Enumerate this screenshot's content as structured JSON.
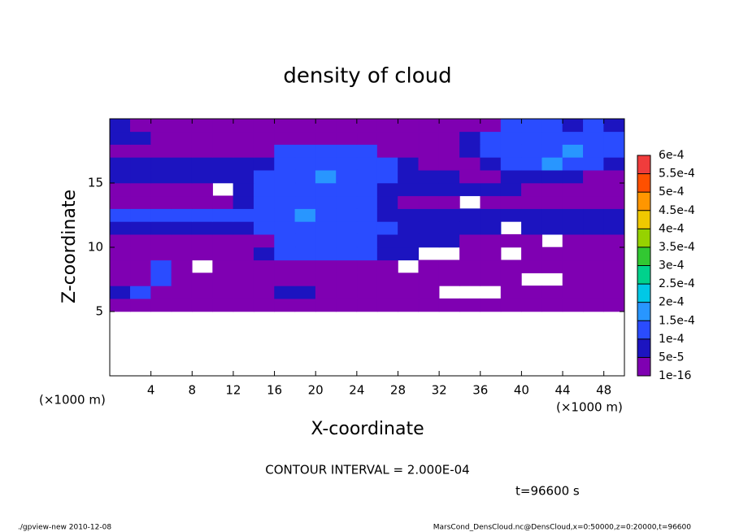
{
  "chart_data": {
    "type": "heatmap",
    "title": "density of cloud",
    "xlabel": "X-coordinate",
    "ylabel": "Z-coordinate",
    "x_unit_label": "(×1000 m)",
    "contour_interval": "CONTOUR INTERVAL = 2.000E-04",
    "time_label": "t=96600 s",
    "footer_left": "./gpview-new  2010-12-08",
    "footer_right": "MarsCond_DensCloud.nc@DensCloud,x=0:50000,z=0:20000,t=96600",
    "xlim": [
      0,
      50
    ],
    "ylim": [
      0,
      20
    ],
    "xticks": [
      4,
      8,
      12,
      16,
      20,
      24,
      28,
      32,
      36,
      40,
      44,
      48
    ],
    "yticks": [
      5,
      10,
      15
    ],
    "x": [
      1,
      3,
      5,
      7,
      9,
      11,
      13,
      15,
      17,
      19,
      21,
      23,
      25,
      27,
      29,
      31,
      33,
      35,
      37,
      39,
      41,
      43,
      45,
      47,
      49
    ],
    "y": [
      5.5,
      6.5,
      7.5,
      8.5,
      9.5,
      10.5,
      11.5,
      12.5,
      13.5,
      14.5,
      15.5,
      16.5,
      17.5,
      18.5,
      19.5
    ],
    "levels": [
      {
        "value": 1e-16,
        "label": "1e-16"
      },
      {
        "value": 5e-05,
        "label": "5e-5"
      },
      {
        "value": 0.0001,
        "label": "1e-4"
      },
      {
        "value": 0.00015,
        "label": "1.5e-4"
      },
      {
        "value": 0.0002,
        "label": "2e-4"
      },
      {
        "value": 0.00025,
        "label": "2.5e-4"
      },
      {
        "value": 0.0003,
        "label": "3e-4"
      },
      {
        "value": 0.00035,
        "label": "3.5e-4"
      },
      {
        "value": 0.0004,
        "label": "4e-4"
      },
      {
        "value": 0.00045,
        "label": "4.5e-4"
      },
      {
        "value": 0.0005,
        "label": "5e-4"
      },
      {
        "value": 0.00055,
        "label": "5.5e-4"
      },
      {
        "value": 0.0006,
        "label": "6e-4"
      }
    ],
    "colors": [
      "#7f00b2",
      "#1c14c0",
      "#2a4cff",
      "#2896ff",
      "#00c8e6",
      "#00d28c",
      "#32c832",
      "#96d200",
      "#f0c800",
      "#ff9600",
      "#ff5000",
      "#f03c3c",
      "#f09090"
    ],
    "z": [
      [
        2e-05,
        2e-05,
        2e-05,
        2e-05,
        2e-05,
        2e-05,
        2e-05,
        2e-05,
        2e-05,
        2e-05,
        2e-05,
        2e-05,
        2e-05,
        2e-05,
        2e-05,
        2e-05,
        2e-05,
        2e-05,
        2e-05,
        2e-05,
        2e-05,
        2e-05,
        2e-05,
        2e-05,
        2e-05
      ],
      [
        7e-05,
        0.00012,
        2e-05,
        2e-05,
        2e-05,
        2e-05,
        2e-05,
        2e-05,
        7e-05,
        7e-05,
        2e-05,
        2e-05,
        2e-05,
        2e-05,
        2e-05,
        2e-05,
        null,
        null,
        null,
        2e-05,
        2e-05,
        2e-05,
        2e-05,
        2e-05,
        2e-05
      ],
      [
        2e-05,
        2e-05,
        0.00012,
        2e-05,
        2e-05,
        2e-05,
        2e-05,
        2e-05,
        2e-05,
        2e-05,
        2e-05,
        2e-05,
        2e-05,
        2e-05,
        2e-05,
        2e-05,
        2e-05,
        2e-05,
        2e-05,
        2e-05,
        null,
        null,
        2e-05,
        2e-05,
        2e-05
      ],
      [
        2e-05,
        2e-05,
        0.00012,
        2e-05,
        null,
        2e-05,
        2e-05,
        2e-05,
        2e-05,
        2e-05,
        2e-05,
        2e-05,
        2e-05,
        2e-05,
        null,
        2e-05,
        2e-05,
        2e-05,
        2e-05,
        2e-05,
        2e-05,
        2e-05,
        2e-05,
        2e-05,
        2e-05
      ],
      [
        2e-05,
        2e-05,
        2e-05,
        2e-05,
        2e-05,
        2e-05,
        2e-05,
        7e-05,
        0.00012,
        0.00012,
        0.00012,
        0.00012,
        0.00012,
        7e-05,
        7e-05,
        null,
        null,
        2e-05,
        2e-05,
        null,
        2e-05,
        2e-05,
        2e-05,
        2e-05,
        2e-05
      ],
      [
        2e-05,
        2e-05,
        2e-05,
        2e-05,
        2e-05,
        2e-05,
        2e-05,
        2e-05,
        0.00012,
        0.00012,
        0.00012,
        0.00012,
        0.00012,
        7e-05,
        7e-05,
        7e-05,
        7e-05,
        2e-05,
        2e-05,
        2e-05,
        2e-05,
        null,
        2e-05,
        2e-05,
        2e-05
      ],
      [
        7e-05,
        7e-05,
        7e-05,
        7e-05,
        7e-05,
        7e-05,
        7e-05,
        0.00012,
        0.00012,
        0.00012,
        0.00012,
        0.00012,
        0.00012,
        0.00012,
        7e-05,
        7e-05,
        7e-05,
        7e-05,
        7e-05,
        null,
        7e-05,
        7e-05,
        7e-05,
        7e-05,
        7e-05
      ],
      [
        0.00012,
        0.00012,
        0.00012,
        0.00012,
        0.00012,
        0.00012,
        0.00012,
        0.00012,
        0.00012,
        0.00017,
        0.00012,
        0.00012,
        0.00012,
        7e-05,
        7e-05,
        7e-05,
        7e-05,
        7e-05,
        7e-05,
        7e-05,
        7e-05,
        7e-05,
        7e-05,
        7e-05,
        7e-05
      ],
      [
        2e-05,
        2e-05,
        2e-05,
        2e-05,
        2e-05,
        2e-05,
        7e-05,
        0.00012,
        0.00012,
        0.00012,
        0.00012,
        0.00012,
        0.00012,
        7e-05,
        2e-05,
        2e-05,
        2e-05,
        null,
        2e-05,
        2e-05,
        2e-05,
        2e-05,
        2e-05,
        2e-05,
        2e-05
      ],
      [
        2e-05,
        2e-05,
        2e-05,
        2e-05,
        2e-05,
        null,
        7e-05,
        0.00012,
        0.00012,
        0.00012,
        0.00012,
        0.00012,
        0.00012,
        7e-05,
        7e-05,
        7e-05,
        7e-05,
        7e-05,
        7e-05,
        7e-05,
        2e-05,
        2e-05,
        2e-05,
        2e-05,
        2e-05
      ],
      [
        7e-05,
        7e-05,
        7e-05,
        7e-05,
        7e-05,
        7e-05,
        7e-05,
        0.00012,
        0.00012,
        0.00012,
        0.00017,
        0.00012,
        0.00012,
        0.00012,
        7e-05,
        7e-05,
        7e-05,
        2e-05,
        2e-05,
        7e-05,
        7e-05,
        7e-05,
        7e-05,
        2e-05,
        2e-05
      ],
      [
        7e-05,
        7e-05,
        7e-05,
        7e-05,
        7e-05,
        7e-05,
        7e-05,
        7e-05,
        0.00012,
        0.00012,
        0.00012,
        0.00012,
        0.00012,
        0.00012,
        7e-05,
        2e-05,
        2e-05,
        2e-05,
        7e-05,
        0.00012,
        0.00012,
        0.00017,
        0.00012,
        0.00012,
        7e-05
      ],
      [
        2e-05,
        2e-05,
        2e-05,
        2e-05,
        2e-05,
        2e-05,
        2e-05,
        2e-05,
        0.00012,
        0.00012,
        0.00012,
        0.00012,
        0.00012,
        2e-05,
        2e-05,
        2e-05,
        2e-05,
        7e-05,
        0.00012,
        0.00012,
        0.00012,
        0.00012,
        0.00017,
        0.00012,
        0.00012
      ],
      [
        7e-05,
        7e-05,
        2e-05,
        2e-05,
        2e-05,
        2e-05,
        2e-05,
        2e-05,
        2e-05,
        2e-05,
        2e-05,
        2e-05,
        2e-05,
        2e-05,
        2e-05,
        2e-05,
        2e-05,
        7e-05,
        0.00012,
        0.00012,
        0.00012,
        0.00012,
        0.00012,
        0.00012,
        0.00012
      ],
      [
        7e-05,
        2e-05,
        2e-05,
        2e-05,
        2e-05,
        2e-05,
        2e-05,
        2e-05,
        2e-05,
        2e-05,
        2e-05,
        2e-05,
        2e-05,
        2e-05,
        2e-05,
        2e-05,
        2e-05,
        2e-05,
        2e-05,
        0.00012,
        0.00012,
        0.00012,
        7e-05,
        0.00012,
        7e-05
      ]
    ]
  }
}
